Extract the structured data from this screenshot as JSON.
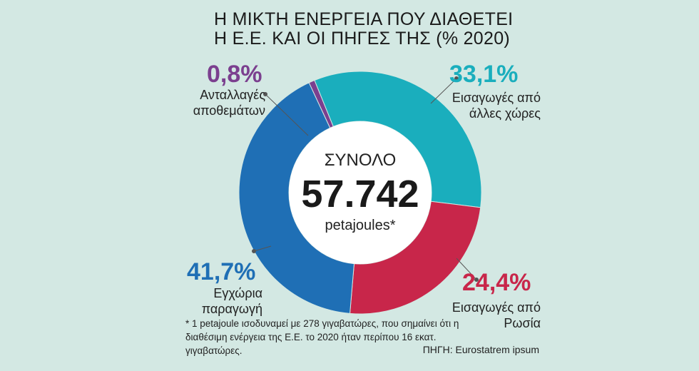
{
  "chart_data": {
    "type": "donut",
    "title": "Η ΜΙΚΤΗ ΕΝΕΡΓΕΙΑ ΠΟΥ ΔΙΑΘΕΤΕΙ Η Ε.Ε. ΚΑΙ ΟΙ ΠΗΓΕΣ ΤΗΣ (% 2020)",
    "center_title": "ΣΥΝΟΛΟ",
    "center_value": "57.742",
    "center_unit": "petajoules*",
    "categories": [
      "Ανταλλαγές αποθεμάτων",
      "Εισαγωγές από άλλες χώρες",
      "Εισαγωγές από Ρωσία",
      "Εγχώρια παραγωγή"
    ],
    "values": [
      0.8,
      33.1,
      24.4,
      41.7
    ],
    "value_labels": [
      "0,8%",
      "33,1%",
      "24,4%",
      "41,7%"
    ],
    "colors": [
      "#7b3f8f",
      "#1aaebd",
      "#c8264a",
      "#1f6fb5"
    ],
    "footnote": "* 1 petajoule ισοδυναμεί με 278 γιγαβατώρες, που σημαίνει ότι η διαθέσιμη ενέργεια της Ε.Ε. το 2020 ήταν περίπου 16 εκατ. γιγαβατώρες.",
    "source": "ΠΗΓΗ: Eurostatrem ipsum"
  }
}
